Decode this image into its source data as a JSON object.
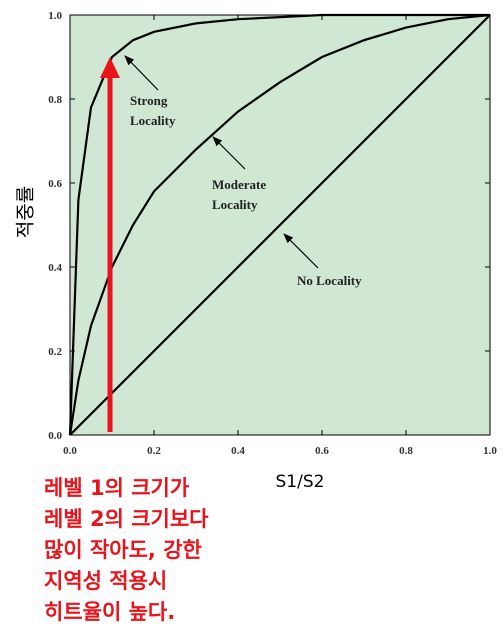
{
  "chart_data": {
    "type": "line",
    "x": [
      0,
      0.02,
      0.05,
      0.1,
      0.15,
      0.2,
      0.3,
      0.4,
      0.5,
      0.6,
      0.7,
      0.8,
      0.9,
      1.0
    ],
    "series": [
      {
        "color": "#000000",
        "values": [
          0,
          0.56,
          0.78,
          0.9,
          0.94,
          0.96,
          0.98,
          0.99,
          0.995,
          1,
          1,
          1,
          1,
          1
        ]
      },
      {
        "color": "#000000",
        "values": [
          0,
          0.13,
          0.26,
          0.4,
          0.5,
          0.58,
          0.68,
          0.77,
          0.84,
          0.9,
          0.94,
          0.97,
          0.99,
          1
        ]
      },
      {
        "color": "#000000",
        "values": [
          0,
          0.02,
          0.05,
          0.1,
          0.15,
          0.2,
          0.3,
          0.4,
          0.5,
          0.6,
          0.7,
          0.8,
          0.9,
          1.0
        ]
      }
    ],
    "xlim": [
      0,
      1
    ],
    "ylim": [
      0,
      1
    ],
    "xticks": [
      {
        "value": 0,
        "label": "0.0"
      },
      0.2,
      0.4,
      0.6,
      0.8,
      {
        "value": 1,
        "label": "1.0"
      }
    ],
    "yticks": [
      {
        "value": 0,
        "label": "0.0"
      },
      0.2,
      0.4,
      0.6,
      0.8,
      {
        "value": 1,
        "label": "1.0"
      }
    ],
    "x_label": "S1/S2",
    "y_label": "적중률",
    "grid": false,
    "background": "#d0e8d3",
    "annotations": [
      {
        "lines": [
          "Strong",
          "Locality"
        ]
      },
      {
        "lines": [
          "Moderate",
          "Locality"
        ]
      },
      {
        "lines": [
          "No Locality"
        ]
      }
    ],
    "note": {
      "color": "#e8141b",
      "lines": [
        "레벨 1의 크기가",
        "레벨 2의 크기보다",
        "많이 작아도, 강한",
        "지역성 적용시",
        "히트율이 높다."
      ]
    }
  }
}
